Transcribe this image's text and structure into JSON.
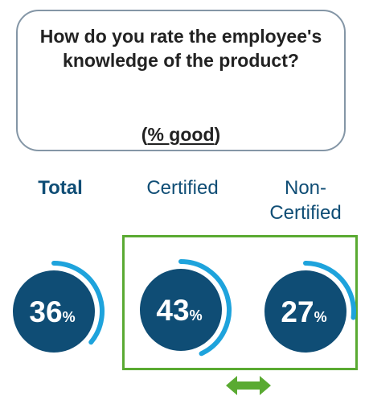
{
  "question": {
    "text": "How do you rate the employee's knowledge of the product?",
    "unit_prefix": "(",
    "unit_text": "% good",
    "unit_suffix": ")"
  },
  "colors": {
    "circle": "#0f4d75",
    "arc": "#1ea3dc",
    "frame": "#5aaa32",
    "arrow": "#5aaa32"
  },
  "chart_data": {
    "type": "donut",
    "categories": [
      "Total",
      "Certified",
      "Non-Certified"
    ],
    "values": [
      36,
      43,
      27
    ],
    "unit": "%"
  }
}
